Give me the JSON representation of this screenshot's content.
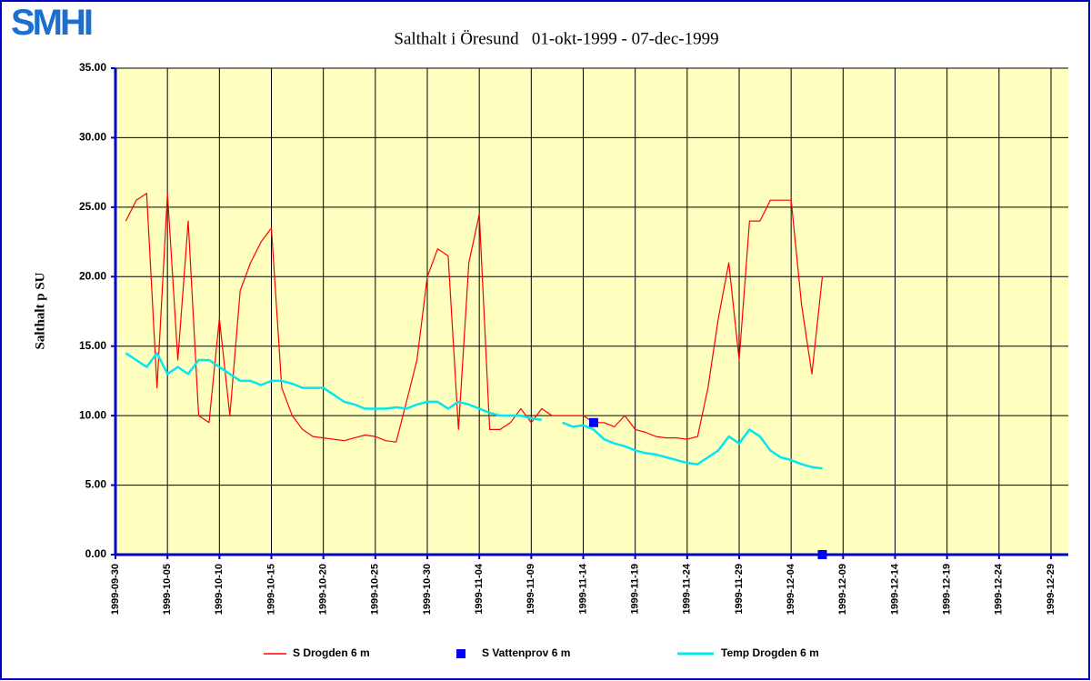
{
  "chart_data": {
    "type": "line",
    "logo": "SMHI",
    "title": "Salthalt i Öresund   01-okt-1999 - 07-dec-1999",
    "y_label": "Salthalt p SU",
    "x": [
      "1999-10-01",
      "1999-10-02",
      "1999-10-03",
      "1999-10-04",
      "1999-10-05",
      "1999-10-06",
      "1999-10-07",
      "1999-10-08",
      "1999-10-09",
      "1999-10-10",
      "1999-10-11",
      "1999-10-12",
      "1999-10-13",
      "1999-10-14",
      "1999-10-15",
      "1999-10-16",
      "1999-10-17",
      "1999-10-18",
      "1999-10-19",
      "1999-10-20",
      "1999-10-21",
      "1999-10-22",
      "1999-10-23",
      "1999-10-24",
      "1999-10-25",
      "1999-10-26",
      "1999-10-27",
      "1999-10-28",
      "1999-10-29",
      "1999-10-30",
      "1999-10-31",
      "1999-11-01",
      "1999-11-02",
      "1999-11-03",
      "1999-11-04",
      "1999-11-05",
      "1999-11-06",
      "1999-11-07",
      "1999-11-08",
      "1999-11-09",
      "1999-11-10",
      "1999-11-11",
      "1999-11-12",
      "1999-11-13",
      "1999-11-14",
      "1999-11-15",
      "1999-11-16",
      "1999-11-17",
      "1999-11-18",
      "1999-11-19",
      "1999-11-20",
      "1999-11-21",
      "1999-11-22",
      "1999-11-23",
      "1999-11-24",
      "1999-11-25",
      "1999-11-26",
      "1999-11-27",
      "1999-11-28",
      "1999-11-29",
      "1999-11-30",
      "1999-12-01",
      "1999-12-02",
      "1999-12-03",
      "1999-12-04",
      "1999-12-05",
      "1999-12-06",
      "1999-12-07"
    ],
    "series": [
      {
        "name": "S Drogden 6 m",
        "color": "#ff0000",
        "style": "line",
        "values": [
          24,
          25.5,
          26,
          12,
          26,
          14,
          24,
          10,
          9.5,
          17,
          10,
          19,
          21,
          22.5,
          23.5,
          12,
          10,
          9,
          8.5,
          8.4,
          8.3,
          8.2,
          8.4,
          8.6,
          8.5,
          8.2,
          8.1,
          11,
          14,
          20,
          22,
          21.5,
          9,
          21,
          24.5,
          9,
          9,
          9.5,
          10.5,
          9.5,
          10.5,
          10,
          10,
          10,
          10,
          9.5,
          9.5,
          9.2,
          10,
          9,
          8.8,
          8.5,
          8.4,
          8.4,
          8.3,
          8.5,
          12,
          17,
          21,
          14,
          24,
          24,
          25.5,
          25.5,
          25.5,
          18,
          13,
          20
        ]
      },
      {
        "name": "S Vattenprov 6 m",
        "color": "#0000ff",
        "style": "marker",
        "values": [
          null,
          null,
          null,
          null,
          null,
          null,
          null,
          null,
          null,
          null,
          null,
          null,
          null,
          null,
          null,
          null,
          null,
          null,
          null,
          null,
          null,
          null,
          null,
          null,
          null,
          null,
          null,
          null,
          null,
          null,
          null,
          null,
          null,
          null,
          null,
          null,
          null,
          null,
          null,
          null,
          null,
          null,
          null,
          null,
          null,
          9.5,
          null,
          null,
          null,
          null,
          null,
          null,
          null,
          null,
          null,
          null,
          null,
          null,
          null,
          null,
          null,
          null,
          null,
          null,
          null,
          null,
          null,
          0
        ]
      },
      {
        "name": "Temp Drogden 6 m",
        "color": "#00e8f0",
        "style": "line",
        "values": [
          14.5,
          14,
          13.5,
          14.5,
          13,
          13.5,
          13,
          14,
          14,
          13.5,
          13,
          12.5,
          12.5,
          12.2,
          12.5,
          12.5,
          12.3,
          12,
          12,
          12,
          11.5,
          11,
          10.8,
          10.5,
          10.5,
          10.5,
          10.6,
          10.5,
          10.8,
          11,
          11,
          10.5,
          11,
          10.8,
          10.5,
          10.2,
          10,
          10,
          10,
          9.8,
          9.7,
          null,
          9.5,
          9.2,
          9.3,
          9,
          8.3,
          8,
          7.8,
          7.5,
          7.3,
          7.2,
          7,
          6.8,
          6.6,
          6.5,
          7,
          7.5,
          8.5,
          8,
          9,
          8.5,
          7.5,
          7,
          6.8,
          6.5,
          6.3,
          6.2
        ]
      }
    ],
    "xlim": [
      "1999-09-30",
      "1999-12-29"
    ],
    "xticks": [
      "1999-09-30",
      "1999-10-05",
      "1999-10-10",
      "1999-10-15",
      "1999-10-20",
      "1999-10-25",
      "1999-10-30",
      "1999-11-04",
      "1999-11-09",
      "1999-11-14",
      "1999-11-19",
      "1999-11-24",
      "1999-11-29",
      "1999-12-04",
      "1999-12-09",
      "1999-12-14",
      "1999-12-19",
      "1999-12-24",
      "1999-12-29"
    ],
    "ylim": [
      0,
      35
    ],
    "yticks": [
      {
        "value": 0,
        "label": "0.00"
      },
      {
        "value": 5,
        "label": "5.00"
      },
      {
        "value": 10,
        "label": "10.00"
      },
      {
        "value": 15,
        "label": "15.00"
      },
      {
        "value": 20,
        "label": "20.00"
      },
      {
        "value": 25,
        "label": "25.00"
      },
      {
        "value": 30,
        "label": "30.00"
      },
      {
        "value": 35,
        "label": "35.00"
      }
    ],
    "grid": true,
    "plot_background": "#ffffc0",
    "axis_color": "#0000c8"
  }
}
